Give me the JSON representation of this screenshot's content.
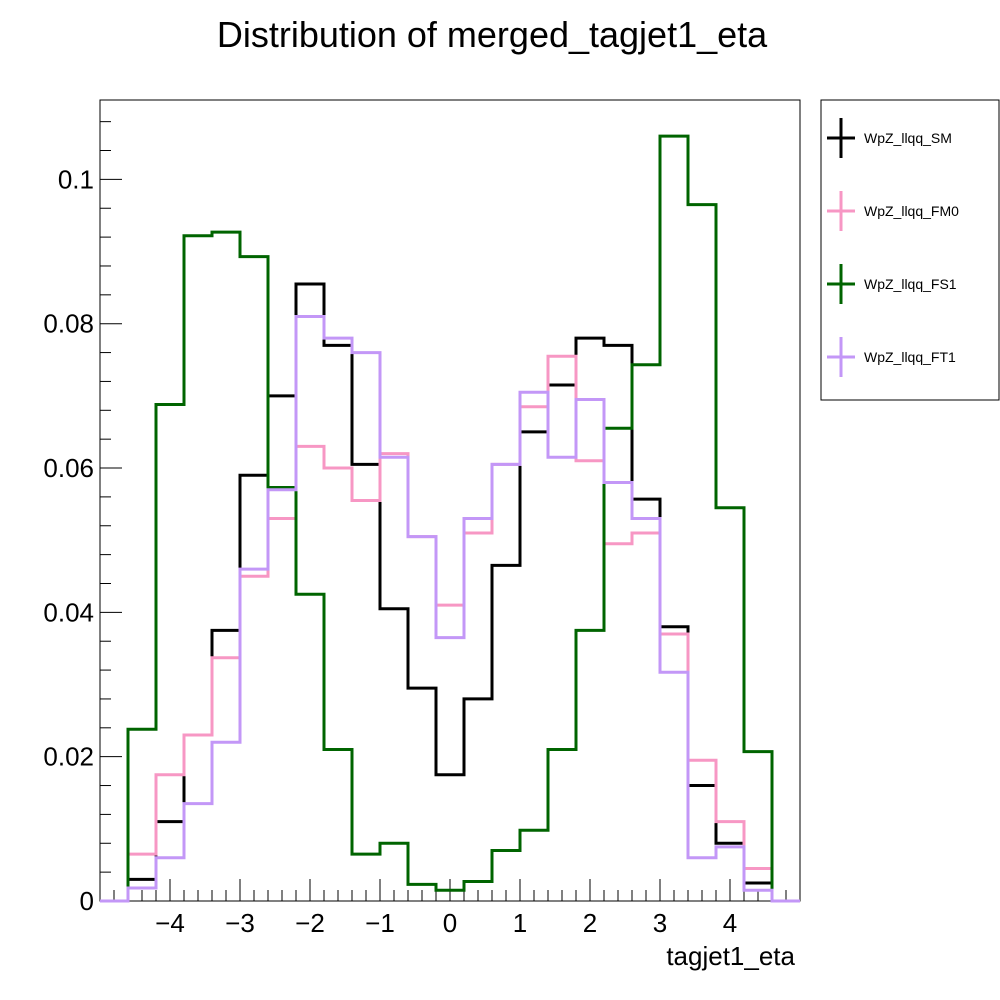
{
  "chart_data": {
    "type": "line",
    "title": "Distribution of merged_tagjet1_eta",
    "xlabel": "tagjet1_eta",
    "ylabel": "",
    "xlim": [
      -5,
      5
    ],
    "ylim": [
      0,
      0.111
    ],
    "x_ticks": [
      {
        "value": -4,
        "label": "−4"
      },
      {
        "value": -3,
        "label": "−3"
      },
      {
        "value": -2,
        "label": "−2"
      },
      {
        "value": -1,
        "label": "−1"
      },
      {
        "value": 0,
        "label": "0"
      },
      {
        "value": 1,
        "label": "1"
      },
      {
        "value": 2,
        "label": "2"
      },
      {
        "value": 3,
        "label": "3"
      },
      {
        "value": 4,
        "label": "4"
      }
    ],
    "y_ticks": [
      {
        "value": 0,
        "label": "0"
      },
      {
        "value": 0.02,
        "label": "0.02"
      },
      {
        "value": 0.04,
        "label": "0.04"
      },
      {
        "value": 0.06,
        "label": "0.06"
      },
      {
        "value": 0.08,
        "label": "0.08"
      },
      {
        "value": 0.1,
        "label": "0.1"
      }
    ],
    "bin_edges": [
      -5.0,
      -4.6,
      -4.2,
      -3.8,
      -3.4,
      -3.0,
      -2.6,
      -2.2,
      -1.8,
      -1.4,
      -1.0,
      -0.6,
      -0.2,
      0.2,
      0.6,
      1.0,
      1.4,
      1.8,
      2.2,
      2.6,
      3.0,
      3.4,
      3.8,
      4.2,
      4.6,
      5.0
    ],
    "legend_position": "top-right (outside plot)",
    "series": [
      {
        "name": "WpZ_llqq_SM",
        "color": "#000000",
        "values": [
          0,
          0.003,
          0.011,
          0.023,
          0.0375,
          0.059,
          0.07,
          0.0855,
          0.077,
          0.0605,
          0.0405,
          0.0295,
          0.0175,
          0.028,
          0.0465,
          0.065,
          0.0715,
          0.078,
          0.077,
          0.0557,
          0.038,
          0.016,
          0.008,
          0.0025,
          0
        ]
      },
      {
        "name": "WpZ_llqq_FM0",
        "color": "#f797c4",
        "values": [
          0,
          0.0065,
          0.0175,
          0.023,
          0.0337,
          0.045,
          0.053,
          0.063,
          0.06,
          0.0555,
          0.062,
          0.0505,
          0.041,
          0.051,
          0.0605,
          0.0685,
          0.0755,
          0.061,
          0.0495,
          0.051,
          0.037,
          0.0195,
          0.011,
          0.0045,
          0
        ]
      },
      {
        "name": "WpZ_llqq_FS1",
        "color": "#006400",
        "values": [
          0,
          0.0238,
          0.0688,
          0.0922,
          0.0927,
          0.0893,
          0.0573,
          0.0425,
          0.021,
          0.0065,
          0.008,
          0.0023,
          0.0015,
          0.0027,
          0.007,
          0.0098,
          0.021,
          0.0375,
          0.0655,
          0.0743,
          0.106,
          0.0965,
          0.0545,
          0.0207,
          0
        ]
      },
      {
        "name": "WpZ_llqq_FT1",
        "color": "#c397f7",
        "values": [
          0,
          0.0018,
          0.006,
          0.0135,
          0.022,
          0.046,
          0.057,
          0.081,
          0.078,
          0.076,
          0.0615,
          0.0505,
          0.0365,
          0.053,
          0.0605,
          0.0705,
          0.0615,
          0.0695,
          0.058,
          0.053,
          0.0317,
          0.006,
          0.0075,
          0.0015,
          0
        ]
      }
    ]
  }
}
